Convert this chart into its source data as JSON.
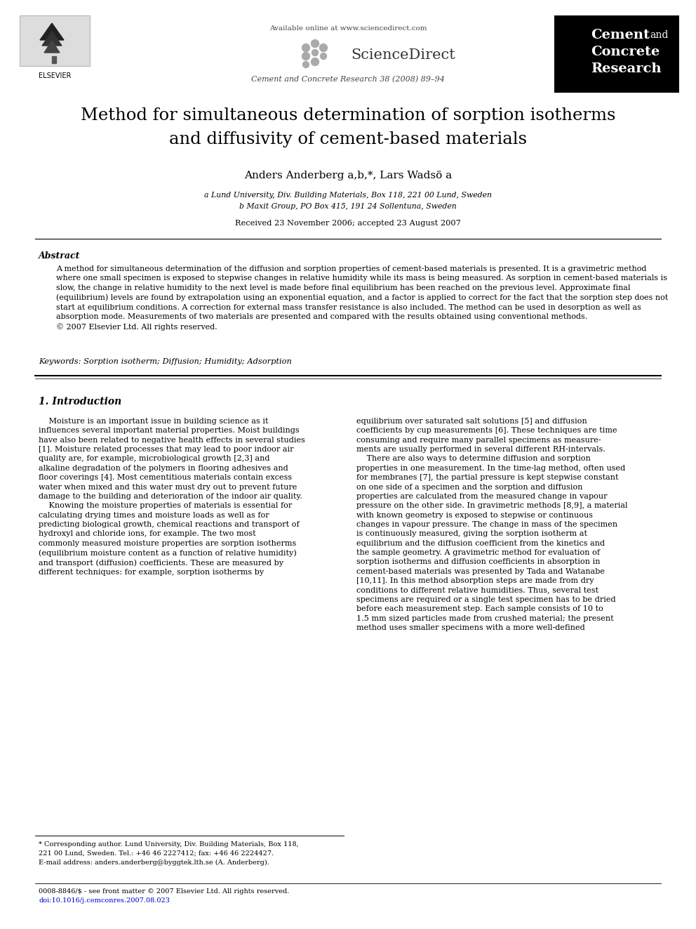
{
  "page_bg": "#ffffff",
  "available_online": "Available online at www.sciencedirect.com",
  "journal_ref": "Cement and Concrete Research 38 (2008) 89–94",
  "journal_name_line1": "Cement",
  "journal_name_and": "and",
  "journal_name_line2": "Concrete",
  "journal_name_line3": "Research",
  "black_box_color": "#000000",
  "white_text_color": "#ffffff",
  "title_line1": "Method for simultaneous determination of sorption isotherms",
  "title_line2": "and diffusivity of cement-based materials",
  "authors": "Anders Anderberg a,b,*, Lars Wadsö a",
  "affil_a": "a Lund University, Div. Building Materials, Box 118, 221 00 Lund, Sweden",
  "affil_b": "b Maxit Group, PO Box 415, 191 24 Sollentuna, Sweden",
  "received": "Received 23 November 2006; accepted 23 August 2007",
  "abstract_heading": "Abstract",
  "abstract_body": "A method for simultaneous determination of the diffusion and sorption properties of cement-based materials is presented. It is a gravimetric method\nwhere one small specimen is exposed to stepwise changes in relative humidity while its mass is being measured. As sorption in cement-based materials is\nslow, the change in relative humidity to the next level is made before final equilibrium has been reached on the previous level. Approximate final\n(equilibrium) levels are found by extrapolation using an exponential equation, and a factor is applied to correct for the fact that the sorption step does not\nstart at equilibrium conditions. A correction for external mass transfer resistance is also included. The method can be used in desorption as well as\nabsorption mode. Measurements of two materials are presented and compared with the results obtained using conventional methods.\n© 2007 Elsevier Ltd. All rights reserved.",
  "keywords": "Keywords: Sorption isotherm; Diffusion; Humidity; Adsorption",
  "section1_heading": "1. Introduction",
  "col1_para1": "    Moisture is an important issue in building science as it\ninfluences several important material properties. Moist buildings\nhave also been related to negative health effects in several studies\n[1]. Moisture related processes that may lead to poor indoor air\nquality are, for example, microbiological growth [2,3] and\nalkaline degradation of the polymers in flooring adhesives and\nfloor coverings [4]. Most cementitious materials contain excess\nwater when mixed and this water must dry out to prevent future\ndamage to the building and deterioration of the indoor air quality.",
  "col1_para2": "    Knowing the moisture properties of materials is essential for\ncalculating drying times and moisture loads as well as for\npredicting biological growth, chemical reactions and transport of\nhydroxyl and chloride ions, for example. The two most\ncommonly measured moisture properties are sorption isotherms\n(equilibrium moisture content as a function of relative humidity)\nand transport (diffusion) coefficients. These are measured by\ndifferent techniques: for example, sorption isotherms by",
  "col2_para1": "equilibrium over saturated salt solutions [5] and diffusion\ncoefficients by cup measurements [6]. These techniques are time\nconsuming and require many parallel specimens as measure-\nments are usually performed in several different RH-intervals.",
  "col2_para2": "    There are also ways to determine diffusion and sorption\nproperties in one measurement. In the time-lag method, often used\nfor membranes [7], the partial pressure is kept stepwise constant\non one side of a specimen and the sorption and diffusion\nproperties are calculated from the measured change in vapour\npressure on the other side. In gravimetric methods [8,9], a material\nwith known geometry is exposed to stepwise or continuous\nchanges in vapour pressure. The change in mass of the specimen\nis continuously measured, giving the sorption isotherm at\nequilibrium and the diffusion coefficient from the kinetics and\nthe sample geometry. A gravimetric method for evaluation of\nsorption isotherms and diffusion coefficients in absorption in\ncement-based materials was presented by Tada and Watanabe\n[10,11]. In this method absorption steps are made from dry\nconditions to different relative humidities. Thus, several test\nspecimens are required or a single test specimen has to be dried\nbefore each measurement step. Each sample consists of 10 to\n1.5 mm sized particles made from crushed material; the present\nmethod uses smaller specimens with a more well-defined",
  "footer_note1": "* Corresponding author. Lund University, Div. Building Materials, Box 118,",
  "footer_note2": "221 00 Lund, Sweden. Tel.: +46 46 2227412; fax: +46 46 2224427.",
  "footer_note3": "E-mail address: anders.anderberg@byggtek.lth.se (A. Anderberg).",
  "footer_line1": "0008-8846/$ - see front matter © 2007 Elsevier Ltd. All rights reserved.",
  "footer_line2": "doi:10.1016/j.cemconres.2007.08.023"
}
